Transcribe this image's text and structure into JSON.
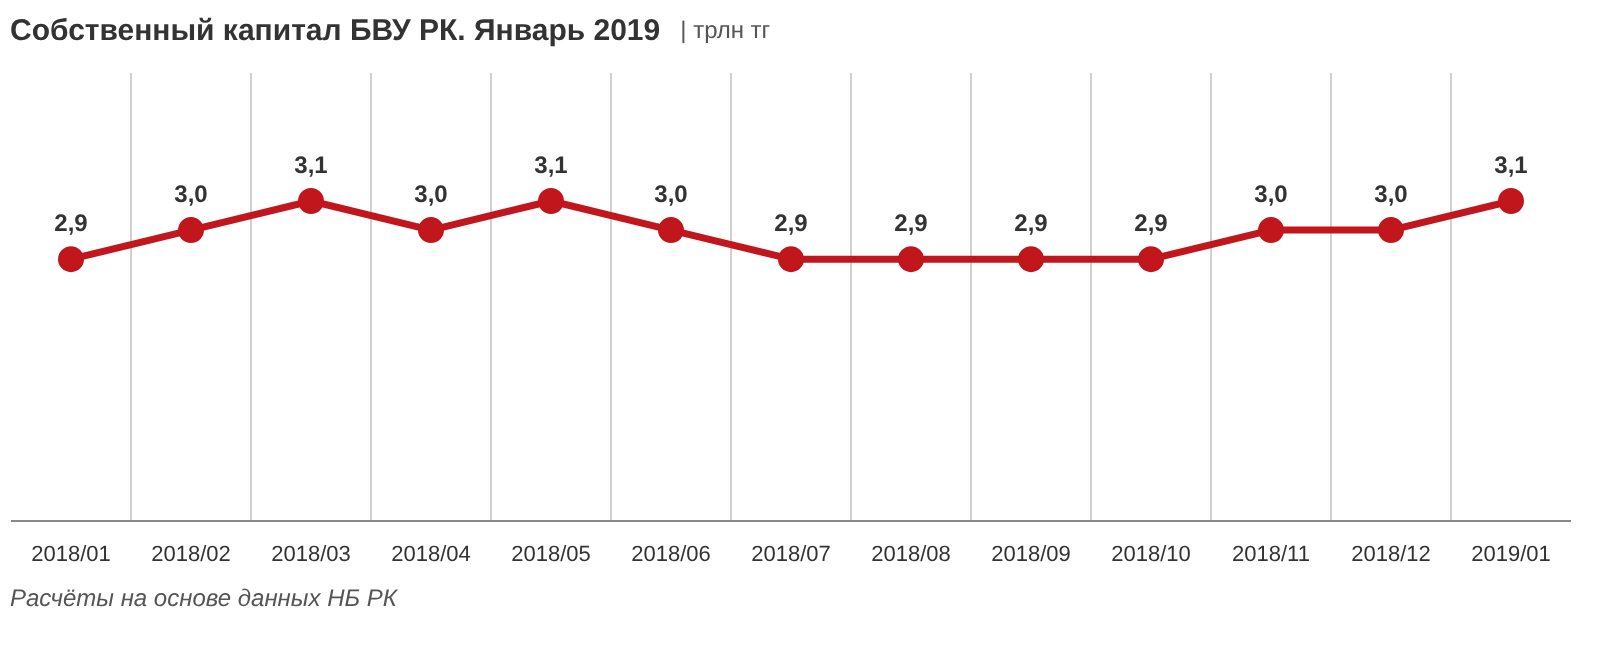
{
  "chart_data": {
    "type": "line",
    "title": "Собственный капитал БВУ РК. Январь 2019",
    "subtitle": "| трлн тг",
    "categories": [
      "2018/01",
      "2018/02",
      "2018/03",
      "2018/04",
      "2018/05",
      "2018/06",
      "2018/07",
      "2018/08",
      "2018/09",
      "2018/10",
      "2018/11",
      "2018/12",
      "2019/01"
    ],
    "series": [
      {
        "color": "#c0161c",
        "values": [
          2.9,
          3.0,
          3.1,
          3.0,
          3.1,
          3.0,
          2.9,
          2.9,
          2.9,
          2.9,
          3.0,
          3.0,
          3.1
        ],
        "value_labels": [
          "2,9",
          "3,0",
          "3,1",
          "3,0",
          "3,1",
          "3,0",
          "2,9",
          "2,9",
          "2,9",
          "2,9",
          "3,0",
          "3,0",
          "3,1"
        ]
      }
    ],
    "data_labels": true,
    "marker": "circle",
    "line_style": "solid",
    "grid": "x",
    "annotations": [
      "Расчёты на основе данных НБ РК"
    ]
  }
}
